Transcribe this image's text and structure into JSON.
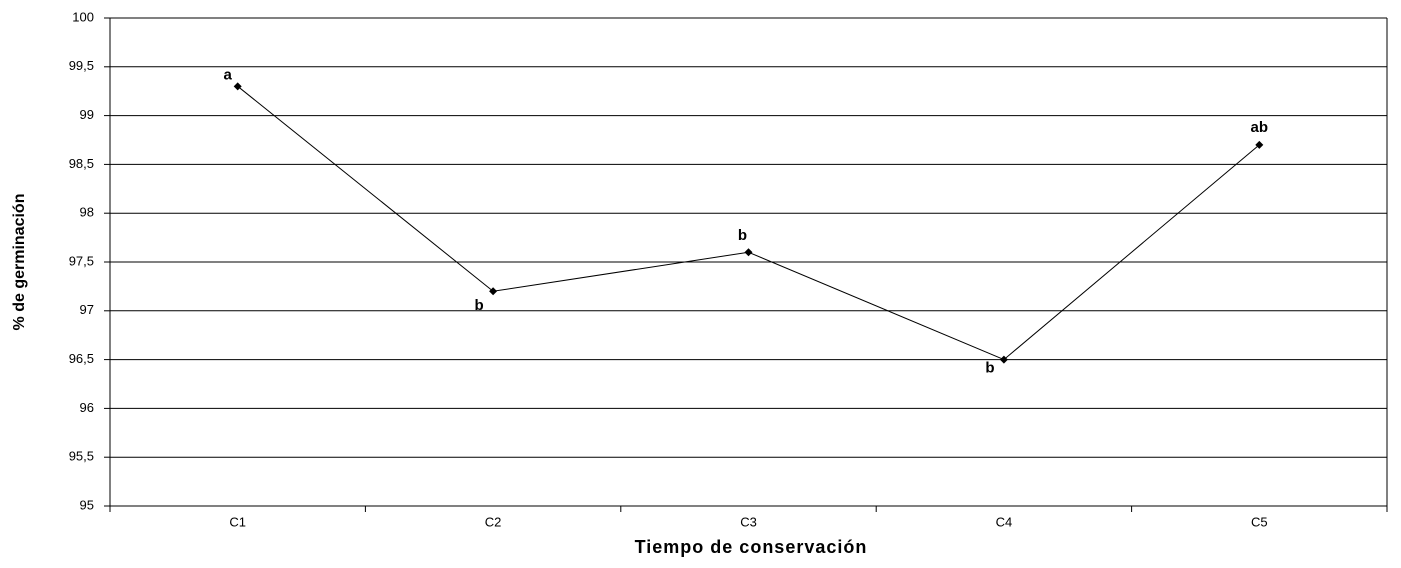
{
  "chart_data": {
    "type": "line",
    "y_label": "% de germinación",
    "x_label": "Tiempo de conservación",
    "categories": [
      "C1",
      "C2",
      "C3",
      "C4",
      "C5"
    ],
    "values": [
      99.3,
      97.2,
      97.6,
      96.5,
      98.7
    ],
    "point_labels": [
      "a",
      "b",
      "b",
      "b",
      "ab"
    ],
    "color": "#000000",
    "ylim": [
      95,
      100
    ],
    "yticks": [
      95,
      {
        "value": 95.5,
        "label": "95,5"
      },
      96,
      {
        "value": 96.5,
        "label": "96,5"
      },
      97,
      {
        "value": 97.5,
        "label": "97,5"
      },
      98,
      {
        "value": 98.5,
        "label": "98,5"
      },
      99,
      {
        "value": 99.5,
        "label": "99,5"
      },
      100
    ],
    "grid": true
  }
}
